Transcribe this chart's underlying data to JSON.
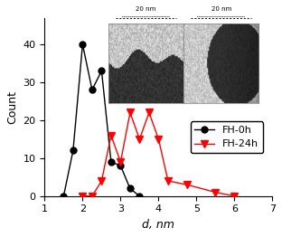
{
  "fh0h_x": [
    1.5,
    1.75,
    2.0,
    2.25,
    2.5,
    2.75,
    3.0,
    3.25,
    3.5
  ],
  "fh0h_y": [
    0,
    12,
    40,
    28,
    33,
    9,
    8,
    2,
    0
  ],
  "fh24h_x": [
    2.0,
    2.25,
    2.5,
    2.75,
    3.0,
    3.25,
    3.5,
    3.75,
    4.0,
    4.25,
    4.75,
    5.5,
    6.0
  ],
  "fh24h_y": [
    0,
    0,
    4,
    16,
    9,
    22,
    15,
    22,
    15,
    4,
    3,
    1,
    0
  ],
  "ylabel": "Count",
  "xlabel": "d, nm",
  "xlim": [
    1,
    7
  ],
  "ylim": [
    0,
    47
  ],
  "yticks": [
    0,
    10,
    20,
    30,
    40
  ],
  "xticks": [
    1,
    2,
    3,
    4,
    5,
    6,
    7
  ],
  "fh0h_color": "black",
  "fh24h_color": "red",
  "background_color": "#ffffff",
  "legend_fh0h": "FH-0h",
  "legend_fh24h": "FH-24h"
}
